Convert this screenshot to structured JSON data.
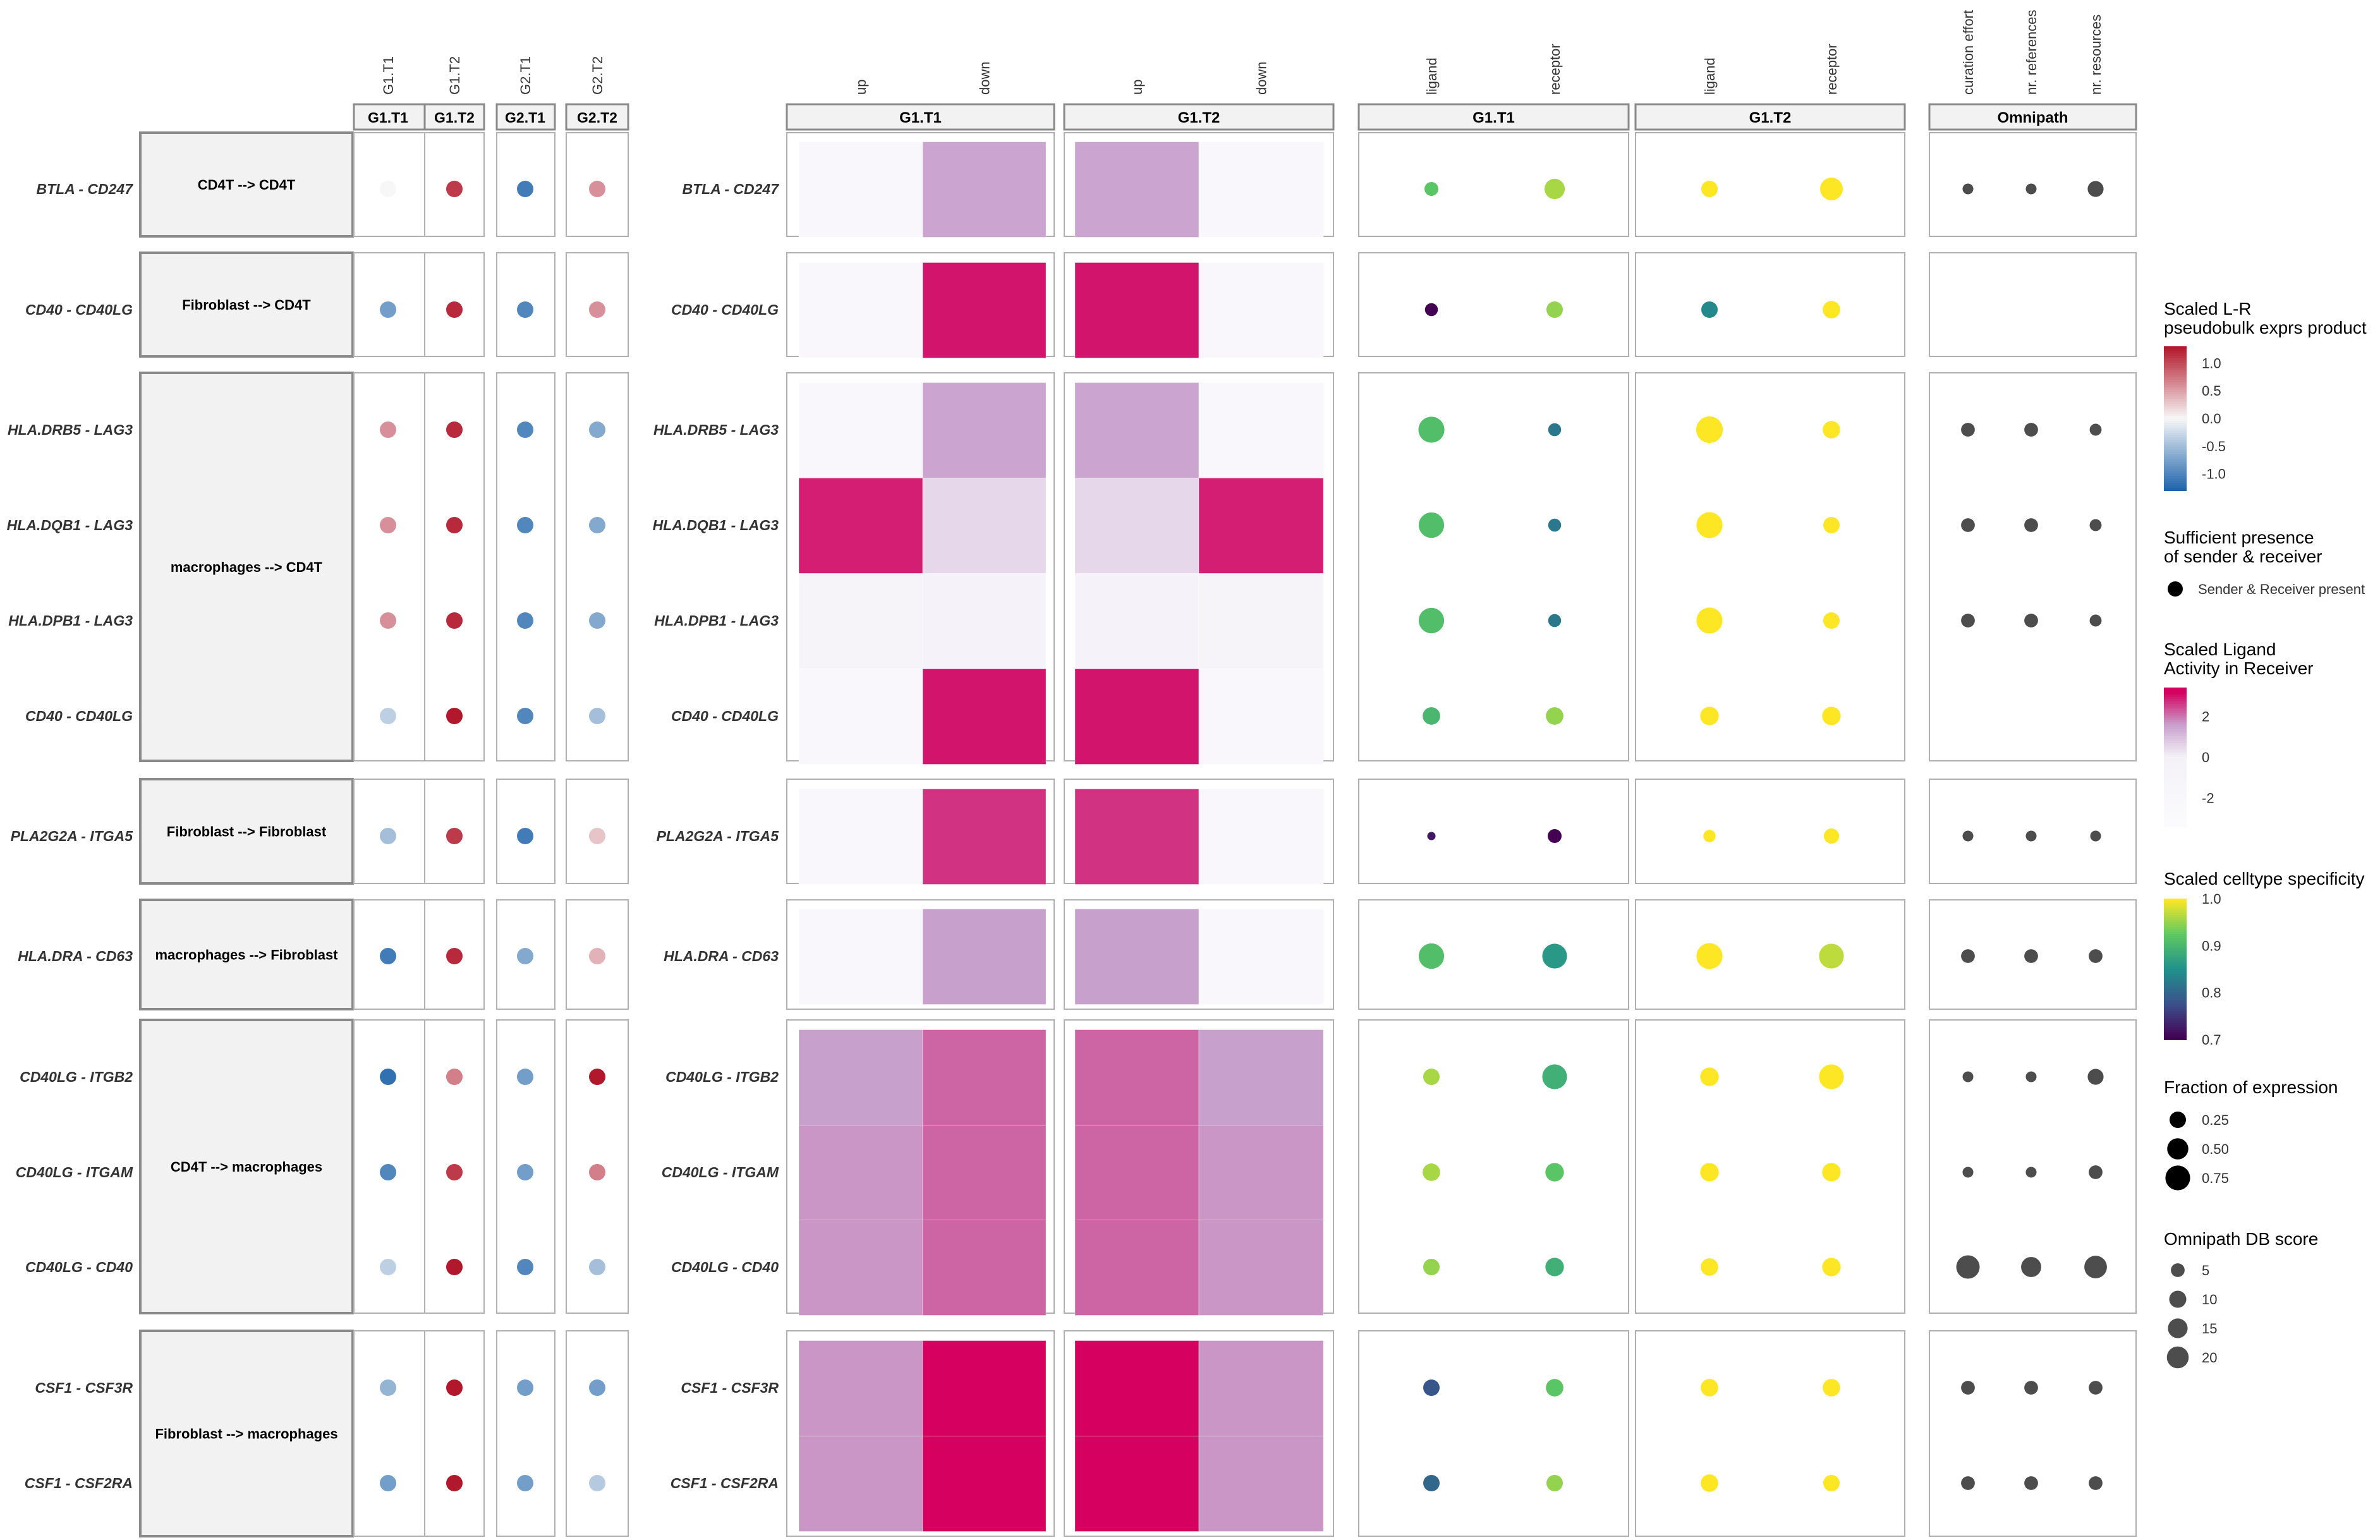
{
  "chart_data": {
    "type": "heatmap",
    "rows": [
      {
        "pair": "BTLA - CD247",
        "group": 0
      },
      {
        "pair": "CD40 - CD40LG",
        "group": 1
      },
      {
        "pair": "HLA.DRB5 - LAG3",
        "group": 2
      },
      {
        "pair": "HLA.DQB1 - LAG3",
        "group": 2
      },
      {
        "pair": "HLA.DPB1 - LAG3",
        "group": 2
      },
      {
        "pair": "CD40 - CD40LG",
        "group": 2
      },
      {
        "pair": "PLA2G2A - ITGA5",
        "group": 3
      },
      {
        "pair": "HLA.DRA - CD63",
        "group": 4
      },
      {
        "pair": "CD40LG - ITGB2",
        "group": 5
      },
      {
        "pair": "CD40LG - ITGAM",
        "group": 5
      },
      {
        "pair": "CD40LG - CD40",
        "group": 5
      },
      {
        "pair": "CSF1 - CSF3R",
        "group": 6
      },
      {
        "pair": "CSF1 - CSF2RA",
        "group": 6
      }
    ],
    "groups": [
      "CD4T --> CD4T",
      "Fibroblast --> CD4T",
      "macrophages --> CD4T",
      "Fibroblast --> Fibroblast",
      "macrophages --> Fibroblast",
      "CD4T --> macrophages",
      "Fibroblast --> macrophages"
    ],
    "expr_panel": {
      "columns": [
        "G1.T1",
        "G1.T2",
        "G2.T1",
        "G2.T2"
      ],
      "values": [
        [
          0.0,
          1.1,
          -1.1,
          0.6
        ],
        [
          -0.8,
          1.2,
          -1.0,
          0.6
        ],
        [
          0.6,
          1.2,
          -1.0,
          -0.7
        ],
        [
          0.6,
          1.2,
          -1.0,
          -0.7
        ],
        [
          0.6,
          1.2,
          -1.0,
          -0.7
        ],
        [
          -0.35,
          1.3,
          -1.0,
          -0.5
        ],
        [
          -0.5,
          1.1,
          -1.1,
          0.3
        ],
        [
          -1.1,
          1.2,
          -0.7,
          0.4
        ],
        [
          -1.2,
          0.7,
          -0.8,
          1.3
        ],
        [
          -1.0,
          1.1,
          -0.8,
          0.7
        ],
        [
          -0.35,
          1.3,
          -1.0,
          -0.5
        ],
        [
          -0.6,
          1.4,
          -0.8,
          -0.8
        ],
        [
          -0.8,
          1.4,
          -0.8,
          -0.4
        ]
      ]
    },
    "activity_panel": {
      "facets": [
        "G1.T1",
        "G1.T2"
      ],
      "columns": [
        "up",
        "down"
      ],
      "values": [
        [
          [
            -2.2,
            1.5
          ],
          [
            1.5,
            -2.2
          ]
        ],
        [
          [
            -2.2,
            3.0
          ],
          [
            3.0,
            -2.2
          ]
        ],
        [
          [
            -2.2,
            1.5
          ],
          [
            1.5,
            -2.2
          ]
        ],
        [
          [
            2.9,
            0.5
          ],
          [
            0.5,
            2.9
          ]
        ],
        [
          [
            -0.8,
            -0.5
          ],
          [
            -0.5,
            -0.8
          ]
        ],
        [
          [
            -2.2,
            3.0
          ],
          [
            3.0,
            -2.2
          ]
        ],
        [
          [
            -2.2,
            2.7
          ],
          [
            2.7,
            -2.2
          ]
        ],
        [
          [
            -2.2,
            1.6
          ],
          [
            1.6,
            -2.2
          ]
        ],
        [
          [
            1.6,
            2.2
          ],
          [
            2.2,
            1.6
          ]
        ],
        [
          [
            1.7,
            2.2
          ],
          [
            2.2,
            1.7
          ]
        ],
        [
          [
            1.7,
            2.2
          ],
          [
            2.2,
            1.7
          ]
        ],
        [
          [
            1.7,
            3.4
          ],
          [
            3.4,
            1.7
          ]
        ],
        [
          [
            1.7,
            3.4
          ],
          [
            3.4,
            1.7
          ]
        ]
      ]
    },
    "specificity_panel": {
      "facets": [
        "G1.T1",
        "G1.T2"
      ],
      "columns": [
        "ligand",
        "receptor"
      ],
      "values": [
        [
          [
            0.92,
            0.96
          ],
          [
            1.0,
            1.0
          ]
        ],
        [
          [
            0.7,
            0.95
          ],
          [
            0.84,
            1.0
          ]
        ],
        [
          [
            0.91,
            0.82
          ],
          [
            1.0,
            1.0
          ]
        ],
        [
          [
            0.91,
            0.82
          ],
          [
            1.0,
            1.0
          ]
        ],
        [
          [
            0.91,
            0.82
          ],
          [
            1.0,
            1.0
          ]
        ],
        [
          [
            0.9,
            0.95
          ],
          [
            1.0,
            1.0
          ]
        ],
        [
          [
            0.72,
            0.7
          ],
          [
            1.0,
            1.0
          ]
        ],
        [
          [
            0.91,
            0.86
          ],
          [
            1.0,
            0.97
          ]
        ],
        [
          [
            0.96,
            0.89
          ],
          [
            1.0,
            1.0
          ]
        ],
        [
          [
            0.96,
            0.92
          ],
          [
            1.0,
            1.0
          ]
        ],
        [
          [
            0.95,
            0.89
          ],
          [
            1.0,
            1.0
          ]
        ],
        [
          [
            0.78,
            0.92
          ],
          [
            1.0,
            1.0
          ]
        ],
        [
          [
            0.8,
            0.95
          ],
          [
            1.0,
            1.0
          ]
        ]
      ],
      "fraction": [
        [
          [
            0.15,
            0.45
          ],
          [
            0.25,
            0.6
          ]
        ],
        [
          [
            0.12,
            0.25
          ],
          [
            0.25,
            0.3
          ]
        ],
        [
          [
            0.85,
            0.12
          ],
          [
            0.9,
            0.3
          ]
        ],
        [
          [
            0.8,
            0.12
          ],
          [
            0.85,
            0.25
          ]
        ],
        [
          [
            0.8,
            0.12
          ],
          [
            0.85,
            0.25
          ]
        ],
        [
          [
            0.3,
            0.3
          ],
          [
            0.35,
            0.35
          ]
        ],
        [
          [
            0.02,
            0.15
          ],
          [
            0.1,
            0.2
          ]
        ],
        [
          [
            0.8,
            0.75
          ],
          [
            0.85,
            0.75
          ]
        ],
        [
          [
            0.25,
            0.75
          ],
          [
            0.35,
            0.75
          ]
        ],
        [
          [
            0.3,
            0.35
          ],
          [
            0.35,
            0.35
          ]
        ],
        [
          [
            0.25,
            0.35
          ],
          [
            0.3,
            0.35
          ]
        ],
        [
          [
            0.25,
            0.3
          ],
          [
            0.3,
            0.3
          ]
        ],
        [
          [
            0.25,
            0.25
          ],
          [
            0.3,
            0.25
          ]
        ]
      ]
    },
    "omnipath_panel": {
      "facet": "Omnipath",
      "columns": [
        "curation effort",
        "nr. references",
        "nr. resources"
      ],
      "values": [
        [
          2,
          2,
          8
        ],
        null,
        [
          5,
          5,
          3
        ],
        [
          5,
          5,
          3
        ],
        [
          5,
          5,
          3
        ],
        null,
        [
          2,
          2,
          2
        ],
        [
          5,
          5,
          5
        ],
        [
          2,
          2,
          8
        ],
        [
          2,
          2,
          5
        ],
        [
          24,
          16,
          22
        ],
        [
          5,
          5,
          5
        ],
        [
          5,
          5,
          5
        ]
      ]
    },
    "legends": {
      "expr": {
        "title": "Scaled L-R\npseudobulk exprs product",
        "ticks": [
          1.0,
          0.5,
          0.0,
          -0.5,
          -1.0
        ],
        "tick_labels": [
          "1.0",
          "0.5",
          "0.0",
          "-0.5",
          "-1.0"
        ]
      },
      "presence": {
        "title": "Sufficient presence\nof sender & receiver",
        "label": "Sender & Receiver present"
      },
      "activity": {
        "title": "Scaled Ligand\nActivity in Receiver",
        "ticks": [
          2,
          0,
          -2
        ],
        "tick_labels": [
          "2",
          "0",
          "-2"
        ]
      },
      "specificity": {
        "title": "Scaled celltype specificity",
        "ticks": [
          1.0,
          0.9,
          0.8,
          0.7
        ],
        "tick_labels": [
          "1.0",
          "0.9",
          "0.8",
          "0.7"
        ]
      },
      "fraction": {
        "title": "Fraction of expression",
        "ticks": [
          0.25,
          0.5,
          0.75
        ],
        "tick_labels": [
          "0.25",
          "0.50",
          "0.75"
        ]
      },
      "omnipath": {
        "title": "Omnipath DB score",
        "ticks": [
          5,
          10,
          15,
          20
        ],
        "tick_labels": [
          "5",
          "10",
          "15",
          "20"
        ]
      }
    },
    "colors": {
      "expr_high": "#b2182b",
      "expr_mid": "#f7f7f7",
      "expr_low": "#2166ac",
      "activity_high": "#d5005f",
      "activity_mid": "#c8a0cc",
      "activity_low": "#f4f2f8",
      "omnipath_dot": "#4d4d4d",
      "strip_bg": "#f2f2f2",
      "panel_border": "#b0b0b0"
    }
  }
}
